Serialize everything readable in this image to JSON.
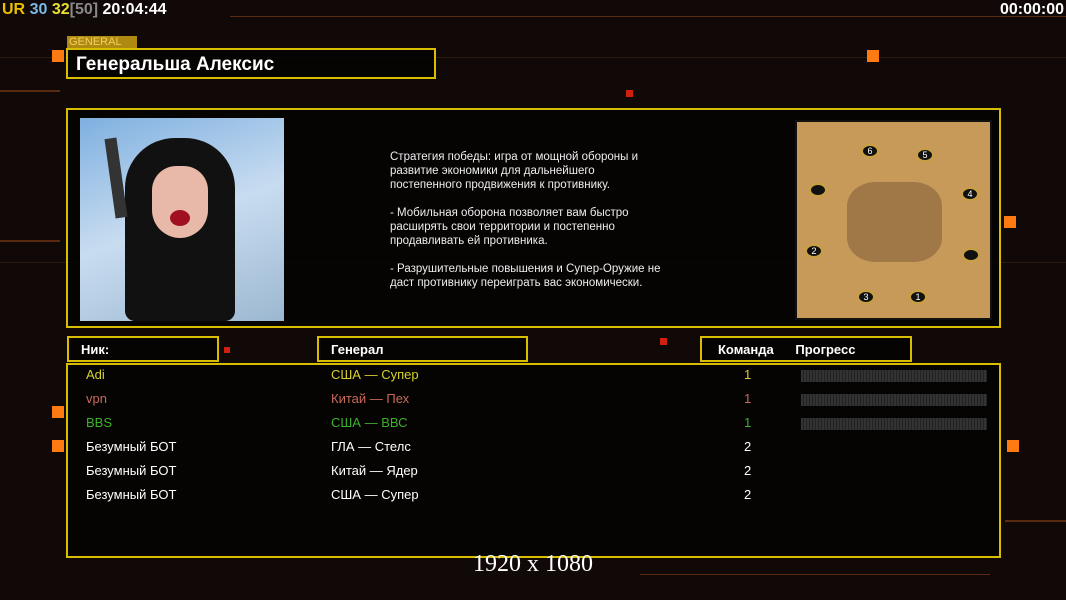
{
  "hud": {
    "ur": "UR",
    "num1": "30",
    "num2": "32",
    "num3": "[50]",
    "time": "20:04:44",
    "timer": "00:00:00"
  },
  "general_label": "GENERAL",
  "title": "Генеральша Алексис",
  "description": "Стратегия победы: игра от мощной обороны и\n развитие экономики для дальнейшего\n постепенного продвижения к противнику.\n\n- Мобильная оборона позволяет вам быстро\n расширять свои территории и постепенно\n продавливать ей противника.\n\n- Разрушительные повышения и Супер-Оружие не\n даст противнику переиграть вас экономически.",
  "map": {
    "slots": [
      "1",
      "2",
      "3",
      "4",
      "5",
      "6"
    ]
  },
  "headers": {
    "nick": "Ник:",
    "general": "Генерал",
    "team": "Команда",
    "progress": "Прогресс"
  },
  "players": [
    {
      "nick": "Adi",
      "general": "США — Супер",
      "team": "1",
      "color": "#d6d22a",
      "progress": 0
    },
    {
      "nick": "vpn",
      "general": "Китай — Пех",
      "team": "1",
      "color": "#c86a5a",
      "progress": 0
    },
    {
      "nick": "BBS",
      "general": "США — ВВС",
      "team": "1",
      "color": "#3cb02a",
      "progress": 0
    },
    {
      "nick": "Безумный БОТ",
      "general": "ГЛА — Стелс",
      "team": "2",
      "color": "#ffffff"
    },
    {
      "nick": "Безумный БОТ",
      "general": "Китай — Ядер",
      "team": "2",
      "color": "#ffffff"
    },
    {
      "nick": "Безумный БОТ",
      "general": "США — Супер",
      "team": "2",
      "color": "#ffffff"
    }
  ],
  "resolution": "1920 x 1080",
  "colors": {
    "accent": "#d9bd00",
    "orange": "#ff7a10"
  }
}
